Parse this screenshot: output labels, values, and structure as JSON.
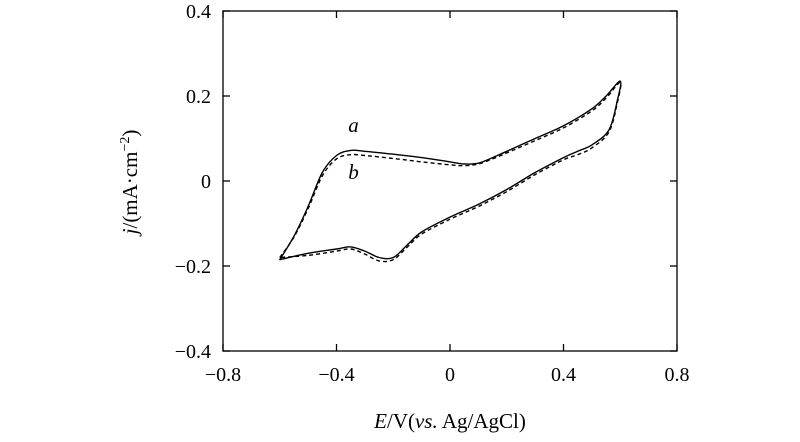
{
  "chart_data": {
    "type": "line",
    "xlabel": {
      "italic": "E",
      "rest1": "/V(",
      "italic2": "vs.",
      "rest2": " Ag/AgCl)"
    },
    "ylabel": {
      "italic": "j",
      "rest": "/(mA·cm",
      "sup": "−2",
      "close": ")"
    },
    "xlim": [
      -0.8,
      0.8
    ],
    "ylim": [
      -0.4,
      0.4
    ],
    "xticks": [
      -0.8,
      -0.4,
      0,
      0.4,
      0.8
    ],
    "xtick_labels": [
      "−0.8",
      "−0.4",
      "0",
      "0.4",
      "0.8"
    ],
    "yticks": [
      -0.4,
      -0.2,
      0,
      0.2,
      0.4
    ],
    "ytick_labels": [
      "−0.4",
      "−0.2",
      "0",
      "0.2",
      "0.4"
    ],
    "grid": false,
    "series": [
      {
        "name": "a",
        "style": "solid",
        "x": [
          -0.6,
          -0.55,
          -0.5,
          -0.45,
          -0.4,
          -0.35,
          -0.3,
          -0.2,
          -0.1,
          0.0,
          0.05,
          0.1,
          0.15,
          0.2,
          0.3,
          0.4,
          0.5,
          0.55,
          0.6,
          0.59,
          0.56,
          0.5,
          0.45,
          0.4,
          0.3,
          0.2,
          0.1,
          0.0,
          -0.1,
          -0.15,
          -0.2,
          -0.25,
          -0.3,
          -0.35,
          -0.4,
          -0.5,
          -0.6
        ],
        "y": [
          -0.185,
          -0.13,
          -0.06,
          0.02,
          0.06,
          0.072,
          0.07,
          0.063,
          0.055,
          0.045,
          0.04,
          0.042,
          0.055,
          0.07,
          0.1,
          0.13,
          0.17,
          0.2,
          0.235,
          0.19,
          0.12,
          0.085,
          0.07,
          0.055,
          0.02,
          -0.02,
          -0.055,
          -0.085,
          -0.12,
          -0.15,
          -0.18,
          -0.18,
          -0.165,
          -0.155,
          -0.16,
          -0.17,
          -0.185
        ]
      },
      {
        "name": "b",
        "style": "dashed",
        "x": [
          -0.6,
          -0.55,
          -0.5,
          -0.45,
          -0.4,
          -0.35,
          -0.3,
          -0.2,
          -0.1,
          0.0,
          0.05,
          0.1,
          0.15,
          0.2,
          0.3,
          0.4,
          0.5,
          0.55,
          0.6,
          0.59,
          0.56,
          0.5,
          0.45,
          0.4,
          0.3,
          0.2,
          0.1,
          0.0,
          -0.1,
          -0.15,
          -0.2,
          -0.25,
          -0.3,
          -0.35,
          -0.4,
          -0.5,
          -0.6
        ],
        "y": [
          -0.18,
          -0.132,
          -0.065,
          0.012,
          0.052,
          0.062,
          0.06,
          0.053,
          0.045,
          0.038,
          0.036,
          0.04,
          0.052,
          0.066,
          0.095,
          0.125,
          0.165,
          0.195,
          0.232,
          0.185,
          0.115,
          0.078,
          0.062,
          0.05,
          0.015,
          -0.025,
          -0.06,
          -0.09,
          -0.125,
          -0.155,
          -0.185,
          -0.188,
          -0.172,
          -0.16,
          -0.165,
          -0.175,
          -0.18
        ]
      }
    ],
    "annotations": [
      {
        "text": "a",
        "x": -0.34,
        "y": 0.115
      },
      {
        "text": "b",
        "x": -0.34,
        "y": 0.005
      }
    ]
  }
}
